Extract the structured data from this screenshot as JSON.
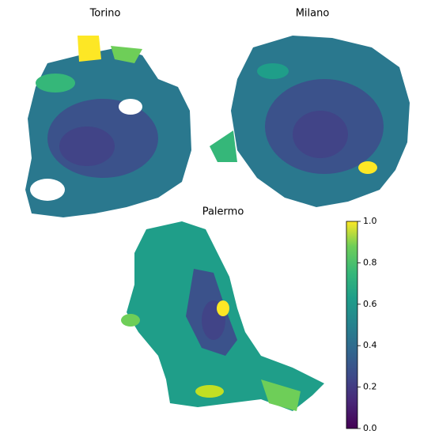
{
  "chart_data": {
    "type": "colorbar",
    "panels": [
      "Torino",
      "Milano",
      "Palermo"
    ],
    "colormap": "viridis",
    "ylim": [
      0,
      1
    ],
    "yticks": [
      {
        "value": 0,
        "label": "0.0"
      },
      0.2,
      0.4,
      0.6,
      0.8,
      {
        "value": 1,
        "label": "1.0"
      }
    ]
  }
}
